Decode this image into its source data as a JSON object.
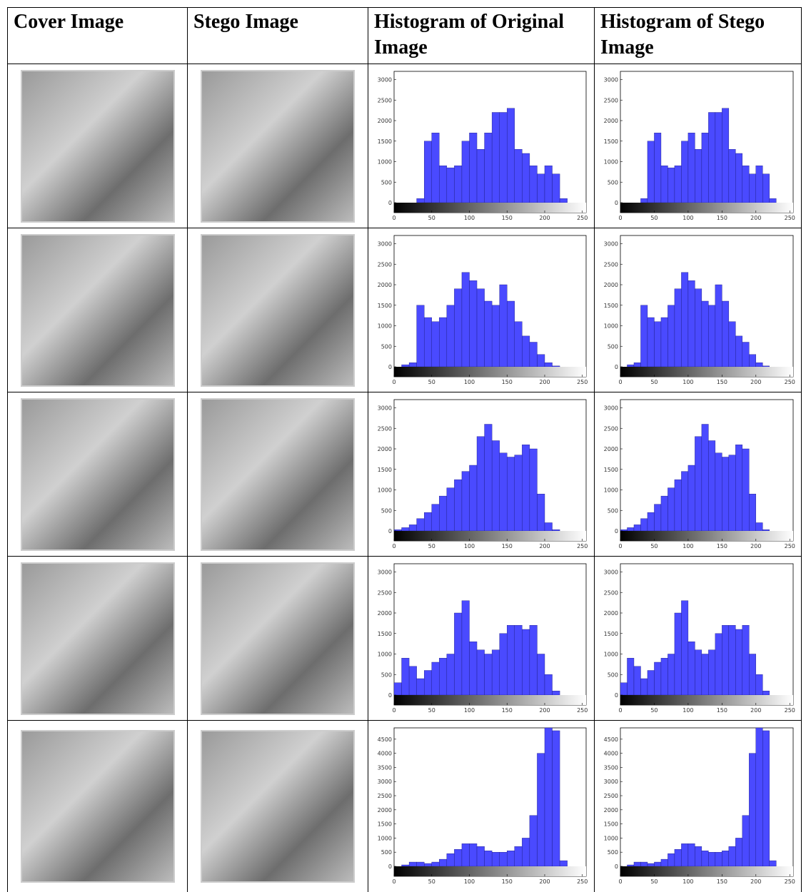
{
  "table": {
    "header": [
      "Cover Image",
      "Stego Image",
      "Histogram of Original Image",
      "Histogram of Stego Image"
    ]
  },
  "chart_data": [
    {
      "type": "histogram",
      "color": "#4a4aff",
      "bins": [
        0,
        10,
        20,
        30,
        40,
        50,
        60,
        70,
        80,
        90,
        100,
        110,
        120,
        130,
        140,
        150,
        160,
        170,
        180,
        190,
        200,
        210,
        220,
        230,
        240,
        250
      ],
      "values": [
        0,
        0,
        0,
        100,
        1500,
        1700,
        900,
        850,
        900,
        1500,
        1700,
        1300,
        1700,
        2200,
        2200,
        2300,
        1300,
        1200,
        900,
        700,
        900,
        700,
        100,
        0,
        0
      ],
      "xlim": [
        0,
        255
      ],
      "ylim": [
        0,
        3200
      ],
      "xticks": [
        0,
        50,
        100,
        150,
        200,
        250
      ],
      "yticks": [
        0,
        500,
        1000,
        1500,
        2000,
        2500,
        3000
      ]
    },
    {
      "type": "histogram",
      "color": "#4a4aff",
      "bins": [
        0,
        10,
        20,
        30,
        40,
        50,
        60,
        70,
        80,
        90,
        100,
        110,
        120,
        130,
        140,
        150,
        160,
        170,
        180,
        190,
        200,
        210,
        220,
        230,
        240,
        250
      ],
      "values": [
        0,
        0,
        0,
        100,
        1500,
        1700,
        900,
        850,
        900,
        1500,
        1700,
        1300,
        1700,
        2200,
        2200,
        2300,
        1300,
        1200,
        900,
        700,
        900,
        700,
        100,
        0,
        0
      ],
      "xlim": [
        0,
        255
      ],
      "ylim": [
        0,
        3200
      ],
      "xticks": [
        0,
        50,
        100,
        150,
        200,
        250
      ],
      "yticks": [
        0,
        500,
        1000,
        1500,
        2000,
        2500,
        3000
      ]
    },
    {
      "type": "histogram",
      "color": "#4a4aff",
      "bins": [
        0,
        10,
        20,
        30,
        40,
        50,
        60,
        70,
        80,
        90,
        100,
        110,
        120,
        130,
        140,
        150,
        160,
        170,
        180,
        190,
        200,
        210,
        220,
        230,
        240,
        250
      ],
      "values": [
        0,
        50,
        100,
        1500,
        1200,
        1100,
        1200,
        1500,
        1900,
        2300,
        2100,
        1900,
        1600,
        1500,
        2000,
        1600,
        1100,
        750,
        600,
        300,
        100,
        20,
        0,
        0,
        0
      ],
      "xlim": [
        0,
        255
      ],
      "ylim": [
        0,
        3200
      ],
      "xticks": [
        0,
        50,
        100,
        150,
        200,
        250
      ],
      "yticks": [
        0,
        500,
        1000,
        1500,
        2000,
        2500,
        3000
      ]
    },
    {
      "type": "histogram",
      "color": "#4a4aff",
      "bins": [
        0,
        10,
        20,
        30,
        40,
        50,
        60,
        70,
        80,
        90,
        100,
        110,
        120,
        130,
        140,
        150,
        160,
        170,
        180,
        190,
        200,
        210,
        220,
        230,
        240,
        250
      ],
      "values": [
        0,
        50,
        100,
        1500,
        1200,
        1100,
        1200,
        1500,
        1900,
        2300,
        2100,
        1900,
        1600,
        1500,
        2000,
        1600,
        1100,
        750,
        600,
        300,
        100,
        20,
        0,
        0,
        0
      ],
      "xlim": [
        0,
        255
      ],
      "ylim": [
        0,
        3200
      ],
      "xticks": [
        0,
        50,
        100,
        150,
        200,
        250
      ],
      "yticks": [
        0,
        500,
        1000,
        1500,
        2000,
        2500,
        3000
      ]
    },
    {
      "type": "histogram",
      "color": "#4a4aff",
      "bins": [
        0,
        10,
        20,
        30,
        40,
        50,
        60,
        70,
        80,
        90,
        100,
        110,
        120,
        130,
        140,
        150,
        160,
        170,
        180,
        190,
        200,
        210,
        220,
        230,
        240,
        250
      ],
      "values": [
        30,
        80,
        150,
        300,
        450,
        650,
        850,
        1050,
        1250,
        1450,
        1600,
        2300,
        2600,
        2200,
        1900,
        1800,
        1850,
        2100,
        2000,
        900,
        200,
        30,
        0,
        0,
        0
      ],
      "xlim": [
        0,
        255
      ],
      "ylim": [
        0,
        3200
      ],
      "xticks": [
        0,
        50,
        100,
        150,
        200,
        250
      ],
      "yticks": [
        0,
        500,
        1000,
        1500,
        2000,
        2500,
        3000
      ]
    },
    {
      "type": "histogram",
      "color": "#4a4aff",
      "bins": [
        0,
        10,
        20,
        30,
        40,
        50,
        60,
        70,
        80,
        90,
        100,
        110,
        120,
        130,
        140,
        150,
        160,
        170,
        180,
        190,
        200,
        210,
        220,
        230,
        240,
        250
      ],
      "values": [
        30,
        80,
        150,
        300,
        450,
        650,
        850,
        1050,
        1250,
        1450,
        1600,
        2300,
        2600,
        2200,
        1900,
        1800,
        1850,
        2100,
        2000,
        900,
        200,
        30,
        0,
        0,
        0
      ],
      "xlim": [
        0,
        255
      ],
      "ylim": [
        0,
        3200
      ],
      "xticks": [
        0,
        50,
        100,
        150,
        200,
        250
      ],
      "yticks": [
        0,
        500,
        1000,
        1500,
        2000,
        2500,
        3000
      ]
    },
    {
      "type": "histogram",
      "color": "#4a4aff",
      "bins": [
        0,
        10,
        20,
        30,
        40,
        50,
        60,
        70,
        80,
        90,
        100,
        110,
        120,
        130,
        140,
        150,
        160,
        170,
        180,
        190,
        200,
        210,
        220,
        230,
        240,
        250
      ],
      "values": [
        300,
        900,
        700,
        400,
        600,
        800,
        900,
        1000,
        2000,
        2300,
        1300,
        1100,
        1000,
        1100,
        1500,
        1700,
        1700,
        1600,
        1700,
        1000,
        500,
        100,
        0,
        0,
        0
      ],
      "xlim": [
        0,
        255
      ],
      "ylim": [
        0,
        3200
      ],
      "xticks": [
        0,
        50,
        100,
        150,
        200,
        250
      ],
      "yticks": [
        0,
        500,
        1000,
        1500,
        2000,
        2500,
        3000
      ]
    },
    {
      "type": "histogram",
      "color": "#4a4aff",
      "bins": [
        0,
        10,
        20,
        30,
        40,
        50,
        60,
        70,
        80,
        90,
        100,
        110,
        120,
        130,
        140,
        150,
        160,
        170,
        180,
        190,
        200,
        210,
        220,
        230,
        240,
        250
      ],
      "values": [
        300,
        900,
        700,
        400,
        600,
        800,
        900,
        1000,
        2000,
        2300,
        1300,
        1100,
        1000,
        1100,
        1500,
        1700,
        1700,
        1600,
        1700,
        1000,
        500,
        100,
        0,
        0,
        0
      ],
      "xlim": [
        0,
        255
      ],
      "ylim": [
        0,
        3200
      ],
      "xticks": [
        0,
        50,
        100,
        150,
        200,
        250
      ],
      "yticks": [
        0,
        500,
        1000,
        1500,
        2000,
        2500,
        3000
      ]
    },
    {
      "type": "histogram",
      "color": "#4a4aff",
      "bins": [
        0,
        10,
        20,
        30,
        40,
        50,
        60,
        70,
        80,
        90,
        100,
        110,
        120,
        130,
        140,
        150,
        160,
        170,
        180,
        190,
        200,
        210,
        220,
        230,
        240,
        250
      ],
      "values": [
        0,
        50,
        150,
        150,
        100,
        150,
        250,
        450,
        600,
        800,
        800,
        700,
        550,
        500,
        500,
        550,
        700,
        1000,
        1800,
        4000,
        4900,
        4800,
        200,
        0,
        0
      ],
      "xlim": [
        0,
        255
      ],
      "ylim": [
        0,
        4900
      ],
      "xticks": [
        0,
        50,
        100,
        150,
        200,
        250
      ],
      "yticks": [
        0,
        500,
        1000,
        1500,
        2000,
        2500,
        3000,
        3500,
        4000,
        4500
      ]
    },
    {
      "type": "histogram",
      "color": "#4a4aff",
      "bins": [
        0,
        10,
        20,
        30,
        40,
        50,
        60,
        70,
        80,
        90,
        100,
        110,
        120,
        130,
        140,
        150,
        160,
        170,
        180,
        190,
        200,
        210,
        220,
        230,
        240,
        250
      ],
      "values": [
        0,
        50,
        150,
        150,
        100,
        150,
        250,
        450,
        600,
        800,
        800,
        700,
        550,
        500,
        500,
        550,
        700,
        1000,
        1800,
        4000,
        4900,
        4800,
        200,
        0,
        0
      ],
      "xlim": [
        0,
        255
      ],
      "ylim": [
        0,
        4900
      ],
      "xticks": [
        0,
        50,
        100,
        150,
        200,
        250
      ],
      "yticks": [
        0,
        500,
        1000,
        1500,
        2000,
        2500,
        3000,
        3500,
        4000,
        4500
      ]
    }
  ]
}
